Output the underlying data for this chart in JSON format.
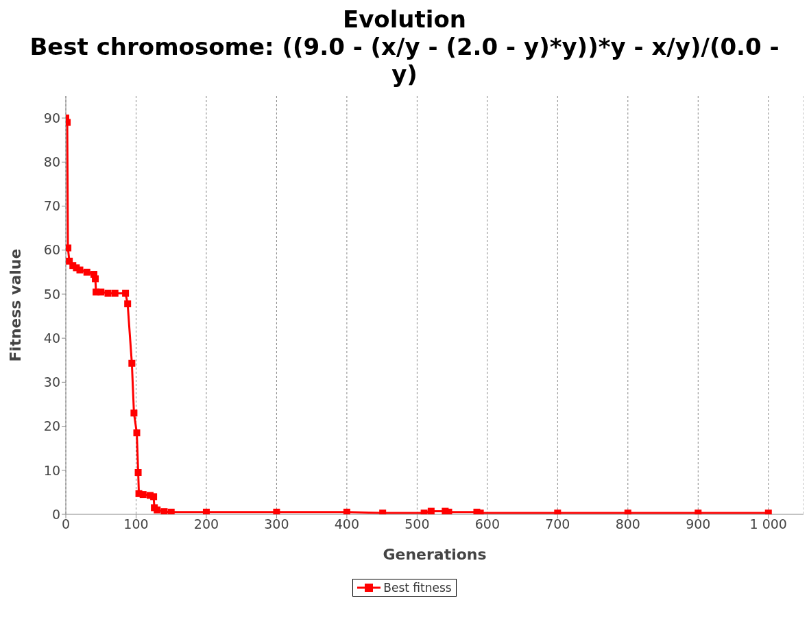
{
  "chart_data": {
    "type": "line",
    "title": "Evolution",
    "subtitle": "Best chromosome: ((9.0 - (x/y - (2.0 - y)*y))*y - x/y)/(0.0 - y)",
    "xlabel": "Generations",
    "ylabel": "Fitness value",
    "series": [
      {
        "name": "Best fitness",
        "color": "#ff0000",
        "x": [
          0,
          2,
          3,
          5,
          10,
          15,
          20,
          30,
          40,
          42,
          43,
          50,
          60,
          70,
          85,
          88,
          94,
          97,
          101,
          103,
          104,
          110,
          120,
          125,
          126,
          130,
          140,
          150,
          200,
          300,
          400,
          451,
          510,
          520,
          540,
          545,
          585,
          590,
          700,
          800,
          900,
          1000
        ],
        "values": [
          90,
          89,
          60.5,
          57.5,
          56.5,
          56,
          55.5,
          55,
          54.5,
          53.5,
          50.5,
          50.5,
          50.2,
          50.2,
          50.2,
          47.8,
          34.3,
          23,
          18.5,
          9.5,
          4.7,
          4.5,
          4.3,
          4,
          1.5,
          1,
          0.6,
          0.5,
          0.5,
          0.5,
          0.5,
          0.3,
          0.3,
          0.7,
          0.7,
          0.5,
          0.5,
          0.3,
          0.3,
          0.3,
          0.3,
          0.3
        ]
      }
    ],
    "xlim": [
      0,
      1050
    ],
    "ylim": [
      0,
      95
    ],
    "xticks": [
      0,
      100,
      200,
      300,
      400,
      500,
      600,
      700,
      800,
      900,
      {
        "value": 1000,
        "label": "1 000"
      }
    ],
    "yticks": [
      0,
      10,
      20,
      30,
      40,
      50,
      60,
      70,
      80,
      90
    ],
    "grid": "x",
    "legend": "bottom",
    "marker": "square",
    "line_style": "solid"
  }
}
